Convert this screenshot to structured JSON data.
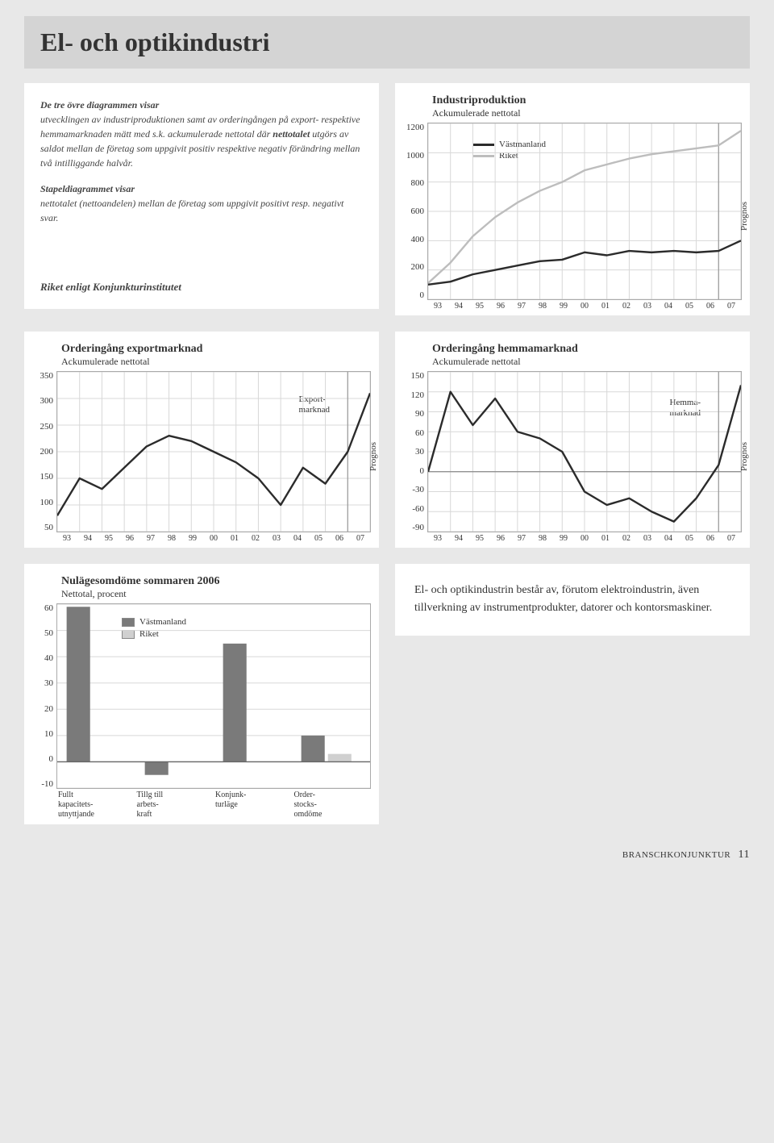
{
  "colors": {
    "page_bg": "#e8e8e8",
    "box_bg": "#ffffff",
    "titlebar_bg": "#d4d4d4",
    "grid": "#d8d8d8",
    "axis": "#aaaaaa",
    "series_dark": "#2b2b2b",
    "series_light": "#bdbdbd",
    "prognos_divider": "#999999"
  },
  "page_title": "El- och optikindustri",
  "description": {
    "h1": "De tre övre diagrammen visar",
    "p1": "utvecklingen av industriproduktionen samt av orderingången på export- respektive hemmamarknaden mätt med s.k. ackumulerade nettotal där ",
    "p1b": "nettotalet",
    "p1c": " utgörs av saldot mellan de företag som uppgivit positiv respektive negativ förändring mellan två intilliggande halvår.",
    "h2": "Stapeldiagrammet visar",
    "p2": "nettotalet (nettoandelen) mellan de företag som uppgivit positivt resp. negativt svar.",
    "riket": "Riket enligt Konjunkturinstitutet"
  },
  "x_labels": [
    "93",
    "94",
    "95",
    "96",
    "97",
    "98",
    "99",
    "00",
    "01",
    "02",
    "03",
    "04",
    "05",
    "06",
    "07"
  ],
  "prognos_label": "Prognos",
  "chart1": {
    "title": "Industriproduktion",
    "subtitle": "Ackumulerade nettotal",
    "ymin": 0,
    "ymax": 1200,
    "ystep": 200,
    "yticks": [
      "1200",
      "1000",
      "800",
      "600",
      "400",
      "200",
      "0"
    ],
    "legend": [
      {
        "label": "Västmanland",
        "color": "#2b2b2b"
      },
      {
        "label": "Riket",
        "color": "#bdbdbd"
      }
    ],
    "series": {
      "vastmanland": [
        100,
        120,
        170,
        200,
        230,
        260,
        270,
        320,
        300,
        330,
        320,
        330,
        320,
        330,
        400
      ],
      "riket": [
        110,
        250,
        430,
        560,
        660,
        740,
        800,
        880,
        920,
        960,
        990,
        1010,
        1030,
        1050,
        1150
      ]
    },
    "prognos_from_index": 13
  },
  "chart2": {
    "title": "Orderingång exportmarknad",
    "subtitle": "Ackumulerade nettotal",
    "ymin": 50,
    "ymax": 350,
    "ystep": 50,
    "yticks": [
      "350",
      "300",
      "250",
      "200",
      "150",
      "100",
      "50"
    ],
    "side_label": "Export-\nmarknad",
    "series": [
      80,
      150,
      130,
      170,
      210,
      230,
      220,
      200,
      180,
      150,
      100,
      170,
      140,
      200,
      310
    ],
    "prognos_from_index": 13
  },
  "chart3": {
    "title": "Orderingång hemmamarknad",
    "subtitle": "Ackumulerade nettotal",
    "ymin": -90,
    "ymax": 150,
    "ystep": 30,
    "yticks": [
      "150",
      "120",
      "90",
      "60",
      "30",
      "0",
      "-30",
      "-60",
      "-90"
    ],
    "side_label": "Hemma-\nmarknad",
    "series": [
      0,
      120,
      70,
      110,
      60,
      50,
      30,
      -30,
      -50,
      -40,
      -60,
      -75,
      -40,
      10,
      130
    ],
    "prognos_from_index": 13
  },
  "chart4": {
    "title": "Nulägesomdöme sommaren 2006",
    "subtitle": "Nettotal, procent",
    "ymin": -10,
    "ymax": 60,
    "ystep": 10,
    "yticks": [
      "60",
      "50",
      "40",
      "30",
      "20",
      "10",
      "0",
      "-10"
    ],
    "legend": [
      {
        "label": "Västmanland",
        "color": "#7a7a7a"
      },
      {
        "label": "Riket",
        "color": "#d0d0d0"
      }
    ],
    "categories": [
      "Fullt\nkapacitets-\nutnyttjande",
      "Tillg till\narbets-\nkraft",
      "Konjunk-\nturläge",
      "Order-\nstocks-\nomdöme"
    ],
    "bars": [
      {
        "v": 59,
        "r": null
      },
      {
        "v": -5,
        "r": null
      },
      {
        "v": 45,
        "r": null
      },
      {
        "v": 10,
        "r": 3
      }
    ],
    "bar_color_v": "#7a7a7a",
    "bar_color_r": "#d0d0d0"
  },
  "info_text": "El- och optikindustrin består av, förutom elektroindustrin, även tillverkning av instrumentprodukter, datorer och kontorsmaskiner.",
  "footer": {
    "label": "BRANSCHKONJUNKTUR",
    "page": "11"
  }
}
